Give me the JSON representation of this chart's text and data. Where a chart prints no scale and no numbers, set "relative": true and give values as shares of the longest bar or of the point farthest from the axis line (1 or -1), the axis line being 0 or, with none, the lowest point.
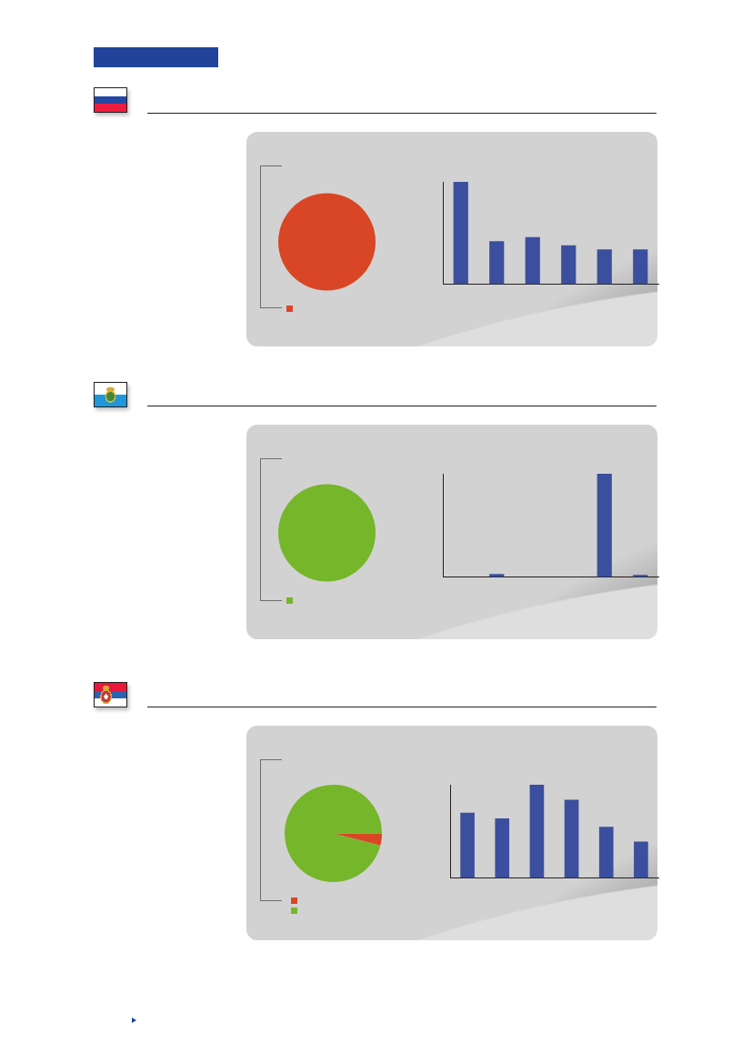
{
  "chart_data": [
    {
      "type": "pie",
      "categories": [
        null
      ],
      "values": [
        100
      ],
      "colors": [
        "#d94625"
      ]
    },
    {
      "type": "bar",
      "categories": [
        null,
        null,
        null,
        null,
        null,
        null
      ],
      "values": [
        1,
        0.42,
        0.46,
        0.38,
        0.34,
        0.34
      ],
      "color": "#3b4f9e",
      "relative": true
    },
    {
      "type": "pie",
      "categories": [
        null
      ],
      "values": [
        100
      ],
      "colors": [
        "#76b62a"
      ]
    },
    {
      "type": "bar",
      "categories": [
        null,
        null,
        null,
        null,
        null,
        null
      ],
      "values": [
        null,
        0.03,
        null,
        null,
        1,
        0.02
      ],
      "color": "#3b4f9e",
      "relative": true
    },
    {
      "type": "pie",
      "categories": [
        null,
        null
      ],
      "values": [
        4,
        96
      ],
      "colors": [
        "#d94625",
        "#76b62a"
      ]
    },
    {
      "type": "bar",
      "categories": [
        null,
        null,
        null,
        null,
        null,
        null
      ],
      "values": [
        0.7,
        0.64,
        1,
        0.84,
        0.55,
        0.39
      ],
      "color": "#3b4f9e",
      "relative": true
    }
  ]
}
